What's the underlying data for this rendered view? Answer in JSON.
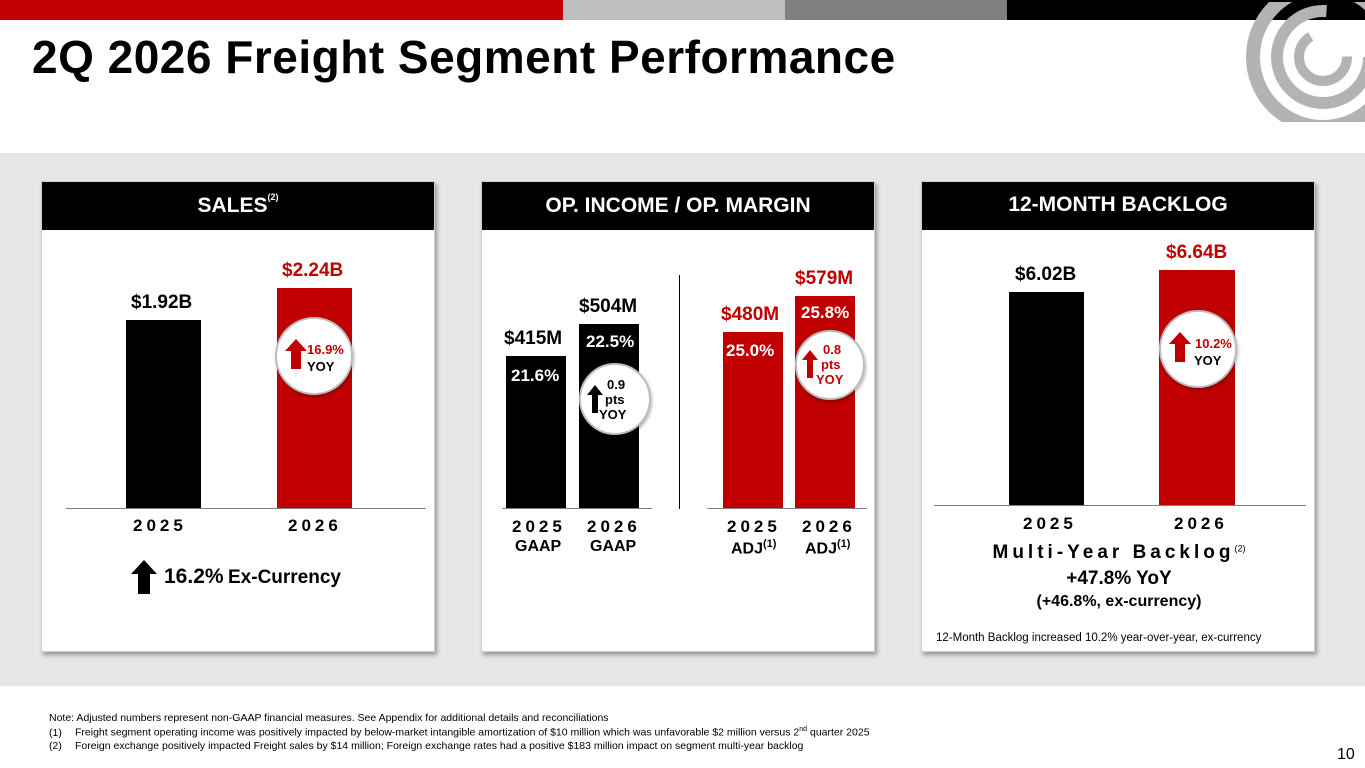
{
  "title": "2Q 2026 Freight Segment Performance",
  "colors": {
    "accent": "#c00000",
    "dark": "#000000",
    "gray": "#bfbfbf"
  },
  "sales": {
    "header": "SALES",
    "header_ref": "(2)",
    "bars": [
      {
        "year": "2025",
        "label": "$1.92B",
        "value": 1.92
      },
      {
        "year": "2026",
        "label": "$2.24B",
        "value": 2.24
      }
    ],
    "badge": {
      "pct": "16.9%",
      "yoy": "YOY"
    },
    "excurrency_pct": "16.2%",
    "excurrency_label": "Ex-Currency"
  },
  "opincome": {
    "header": "OP. INCOME / OP. MARGIN",
    "bars": [
      {
        "year": "2025",
        "sub": "GAAP",
        "label": "$415M",
        "value": 415,
        "margin": "21.6%"
      },
      {
        "year": "2026",
        "sub": "GAAP",
        "label": "$504M",
        "value": 504,
        "margin": "22.5%"
      },
      {
        "year": "2025",
        "sub": "ADJ",
        "sub_ref": "(1)",
        "label": "$480M",
        "value": 480,
        "margin": "25.0%"
      },
      {
        "year": "2026",
        "sub": "ADJ",
        "sub_ref": "(1)",
        "label": "$579M",
        "value": 579,
        "margin": "25.8%"
      }
    ],
    "badge_gaap": {
      "l1": "0.9",
      "l2": "pts",
      "l3": "YOY"
    },
    "badge_adj": {
      "l1": "0.8",
      "l2": "pts",
      "l3": "YOY"
    }
  },
  "backlog": {
    "header": "12-MONTH BACKLOG",
    "bars": [
      {
        "year": "2025",
        "label": "$6.02B",
        "value": 6.02
      },
      {
        "year": "2026",
        "label": "$6.64B",
        "value": 6.64
      }
    ],
    "badge": {
      "pct": "10.2%",
      "yoy": "YOY"
    },
    "multiyear_label": "Multi-Year Backlog",
    "multiyear_ref": "(2)",
    "multiyear_value": "+47.8% YoY",
    "multiyear_excurrency": "(+46.8%, ex-currency)",
    "footnote": "12-Month Backlog increased 10.2% year-over-year, ex-currency"
  },
  "notes": {
    "line0": "Note: Adjusted numbers represent non-GAAP financial measures. See Appendix for additional details and reconciliations",
    "line1_num": "(1)",
    "line1_a": "Freight segment operating income was positively impacted by below-market intangible amortization of $10 million which was unfavorable $2 million versus 2",
    "line1_sup": "nd",
    "line1_b": " quarter 2025",
    "line2_num": "(2)",
    "line2": "Foreign exchange positively impacted Freight sales by $14 million; Foreign exchange rates had a positive $183 million impact on segment multi-year backlog"
  },
  "page_number": "10"
}
